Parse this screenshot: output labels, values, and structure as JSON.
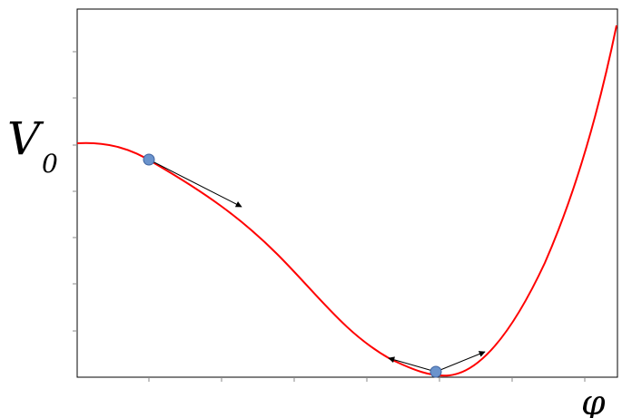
{
  "labels": {
    "y_axis": "V",
    "y_axis_subscript": "0",
    "x_axis": "φ"
  },
  "colors": {
    "curve": "#ff0000",
    "point_fill": "#6a93cc",
    "point_stroke": "#3f63a0",
    "arrow": "#000000",
    "frame": "#000000"
  }
}
